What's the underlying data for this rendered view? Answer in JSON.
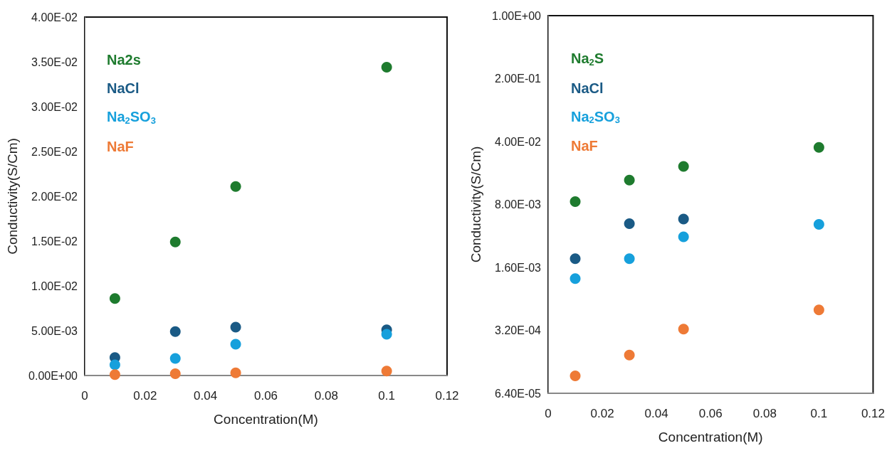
{
  "chart_data": [
    {
      "type": "scatter",
      "xlabel": "Concentration(M)",
      "ylabel": "Conductivity(S/Cm)",
      "xlim": [
        0,
        0.12
      ],
      "xticks": [
        0,
        0.02,
        0.04,
        0.06,
        0.08,
        0.1,
        0.12
      ],
      "ylim": [
        0,
        0.04
      ],
      "yticks": [
        {
          "value": 0,
          "label": "0.00E+00"
        },
        {
          "value": 0.005,
          "label": "5.00E-03"
        },
        {
          "value": 0.01,
          "label": "1.00E-02"
        },
        {
          "value": 0.015,
          "label": "1.50E-02"
        },
        {
          "value": 0.02,
          "label": "2.00E-02"
        },
        {
          "value": 0.025,
          "label": "2.50E-02"
        },
        {
          "value": 0.03,
          "label": "3.00E-02"
        },
        {
          "value": 0.035,
          "label": "3.50E-02"
        },
        {
          "value": 0.04,
          "label": "4.00E-02"
        }
      ],
      "x": [
        0.01,
        0.03,
        0.05,
        0.1
      ],
      "grid": false,
      "legend": "top left",
      "marker": "circle",
      "series": [
        {
          "name": "Na2s",
          "color": "#1e7b2e",
          "values": [
            0.0086,
            0.0149,
            0.0211,
            0.0344
          ]
        },
        {
          "name": "NaCl",
          "color": "#1a5a85",
          "values": [
            0.002,
            0.0049,
            0.0054,
            0.0051
          ]
        },
        {
          "name": "Na$_{2}$SO$_{3}$",
          "color": "#16a0dc",
          "values": [
            0.0012,
            0.0019,
            0.0035,
            0.0046
          ]
        },
        {
          "name": "NaF",
          "color": "#ee7a36",
          "values": [
            0.0001,
            0.0002,
            0.0003,
            0.0005
          ]
        }
      ]
    },
    {
      "type": "scatter",
      "xlabel": "Concentration(M)",
      "ylabel": "Conductivity(S/Cm)",
      "xlim": [
        0,
        0.12
      ],
      "xticks": [
        0,
        0.02,
        0.04,
        0.06,
        0.08,
        0.1,
        0.12
      ],
      "ylim": [
        6.4e-05,
        1
      ],
      "log": "y",
      "yticks": [
        {
          "value": 6.4e-05,
          "label": "6.40E-05"
        },
        {
          "value": 0.00032,
          "label": "3.20E-04"
        },
        {
          "value": 0.0016,
          "label": "1.60E-03"
        },
        {
          "value": 0.008,
          "label": "8.00E-03"
        },
        {
          "value": 0.04,
          "label": "4.00E-02"
        },
        {
          "value": 0.2,
          "label": "2.00E-01"
        },
        {
          "value": 1,
          "label": "1.00E+00"
        }
      ],
      "x": [
        0.01,
        0.03,
        0.05,
        0.1
      ],
      "grid": false,
      "legend": "top left",
      "marker": "circle",
      "series": [
        {
          "name": "Na$_{2}$S",
          "color": "#1e7b2e",
          "values": [
            0.0086,
            0.0149,
            0.0212,
            0.0344
          ]
        },
        {
          "name": "NaCl",
          "color": "#1a5a85",
          "values": [
            0.002,
            0.0049,
            0.0055,
            null
          ]
        },
        {
          "name": "Na$_{2}$SO$_{3}$",
          "color": "#16a0dc",
          "values": [
            0.0012,
            0.002,
            0.0035,
            0.0048
          ]
        },
        {
          "name": "NaF",
          "color": "#ee7a36",
          "values": [
            0.0001,
            0.00017,
            0.00033,
            0.00054
          ]
        }
      ]
    }
  ]
}
